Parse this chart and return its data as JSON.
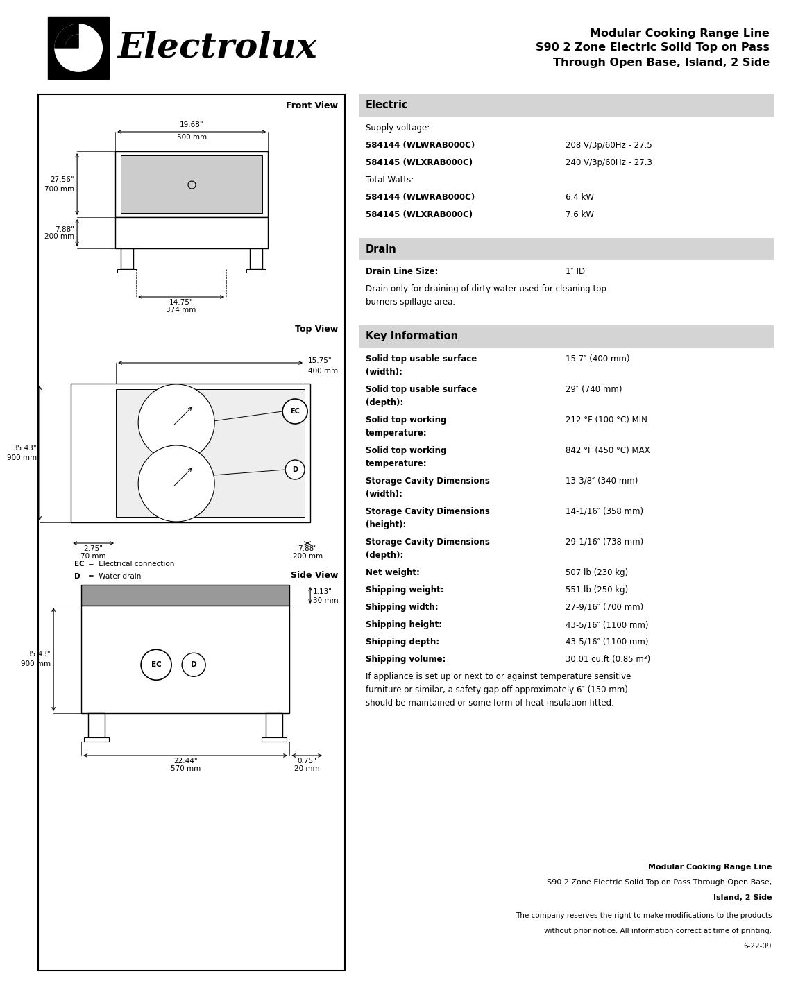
{
  "header_bg": "#e8e8e8",
  "header_title_line1": "Modular Cooking Range Line",
  "header_title_line2": "S90 2 Zone Electric Solid Top on Pass",
  "header_title_line3": "Through Open Base, Island, 2 Side",
  "brand_name": "Electrolux",
  "page_bg": "#ffffff",
  "sections": [
    {
      "title": "Electric",
      "items": [
        {
          "label": "Supply voltage:",
          "value": "",
          "bold_label": false
        },
        {
          "label": "584144 (WLWRAB000C)",
          "value": "208 V/3p/60Hz - 27.5",
          "bold_label": true
        },
        {
          "label": "584145 (WLXRAB000C)",
          "value": "240 V/3p/60Hz - 27.3",
          "bold_label": true
        },
        {
          "label": "Total Watts:",
          "value": "",
          "bold_label": false
        },
        {
          "label": "584144 (WLWRAB000C)",
          "value": "6.4 kW",
          "bold_label": true
        },
        {
          "label": "584145 (WLXRAB000C)",
          "value": "7.6 kW",
          "bold_label": true
        }
      ]
    },
    {
      "title": "Drain",
      "items": [
        {
          "label": "Drain Line Size:",
          "value": "1″ ID",
          "bold_label": true
        },
        {
          "label": "Drain only for draining of dirty water used for cleaning top\nburners spillage area.",
          "value": "",
          "bold_label": false
        }
      ]
    },
    {
      "title": "Key Information",
      "items": [
        {
          "label": "Solid top usable surface\n(width):",
          "value": "15.7″ (400 mm)",
          "bold_label": true
        },
        {
          "label": "Solid top usable surface\n(depth):",
          "value": "29″ (740 mm)",
          "bold_label": true
        },
        {
          "label": "Solid top working\ntemperature:",
          "value": "212 °F (100 °C) MIN",
          "bold_label": true
        },
        {
          "label": "Solid top working\ntemperature:",
          "value": "842 °F (450 °C) MAX",
          "bold_label": true
        },
        {
          "label": "Storage Cavity Dimensions\n(width):",
          "value": "13-3/8″ (340 mm)",
          "bold_label": true
        },
        {
          "label": "Storage Cavity Dimensions\n(height):",
          "value": "14-1/16″ (358 mm)",
          "bold_label": true
        },
        {
          "label": "Storage Cavity Dimensions\n(depth):",
          "value": "29-1/16″ (738 mm)",
          "bold_label": true
        },
        {
          "label": "Net weight:",
          "value": "507 lb (230 kg)",
          "bold_label": true
        },
        {
          "label": "Shipping weight:",
          "value": "551 lb (250 kg)",
          "bold_label": true
        },
        {
          "label": "Shipping width:",
          "value": "27-9/16″ (700 mm)",
          "bold_label": true
        },
        {
          "label": "Shipping height:",
          "value": "43-5/16″ (1100 mm)",
          "bold_label": true
        },
        {
          "label": "Shipping depth:",
          "value": "43-5/16″ (1100 mm)",
          "bold_label": true
        },
        {
          "label": "Shipping volume:",
          "value": "30.01 cu.ft (0.85 m³)",
          "bold_label": true
        },
        {
          "label": "If appliance is set up or next to or against temperature sensitive\nfurniture or similar, a safety gap off approximately 6″ (150 mm)\nshould be maintained or some form of heat insulation fitted.",
          "value": "",
          "bold_label": false
        }
      ]
    }
  ],
  "footer_line1": "Modular Cooking Range Line",
  "footer_line2": "S90 2 Zone Electric Solid Top on Pass Through Open Base,",
  "footer_line3": "Island, 2 Side",
  "footer_note1": "The company reserves the right to make modifications to the products",
  "footer_note2": "without prior notice. All information correct at time of printing.",
  "footer_note3": "6-22-09",
  "front_dims": {
    "width_in": "19.68\"",
    "width_mm": "500 mm",
    "height_in": "27.56\"",
    "height_mm": "700 mm",
    "base_in": "7.88\"",
    "base_mm": "200 mm",
    "depth_in": "14.75\"",
    "depth_mm": "374 mm"
  },
  "top_dims": {
    "width_in": "35.43\"",
    "width_mm": "900 mm",
    "depth_in": "15.75\"",
    "depth_mm": "400 mm",
    "side_in": "2.75\"",
    "side_mm": "70 mm",
    "side2_in": "7.88\"",
    "side2_mm": "200 mm"
  },
  "side_dims": {
    "height_in": "35.43\"",
    "height_mm": "900 mm",
    "top_in": "1.13\"",
    "top_mm": "30 mm",
    "width_in": "22.44\"",
    "width_mm": "570 mm",
    "foot_in": "0.75\"",
    "foot_mm": "20 mm"
  }
}
